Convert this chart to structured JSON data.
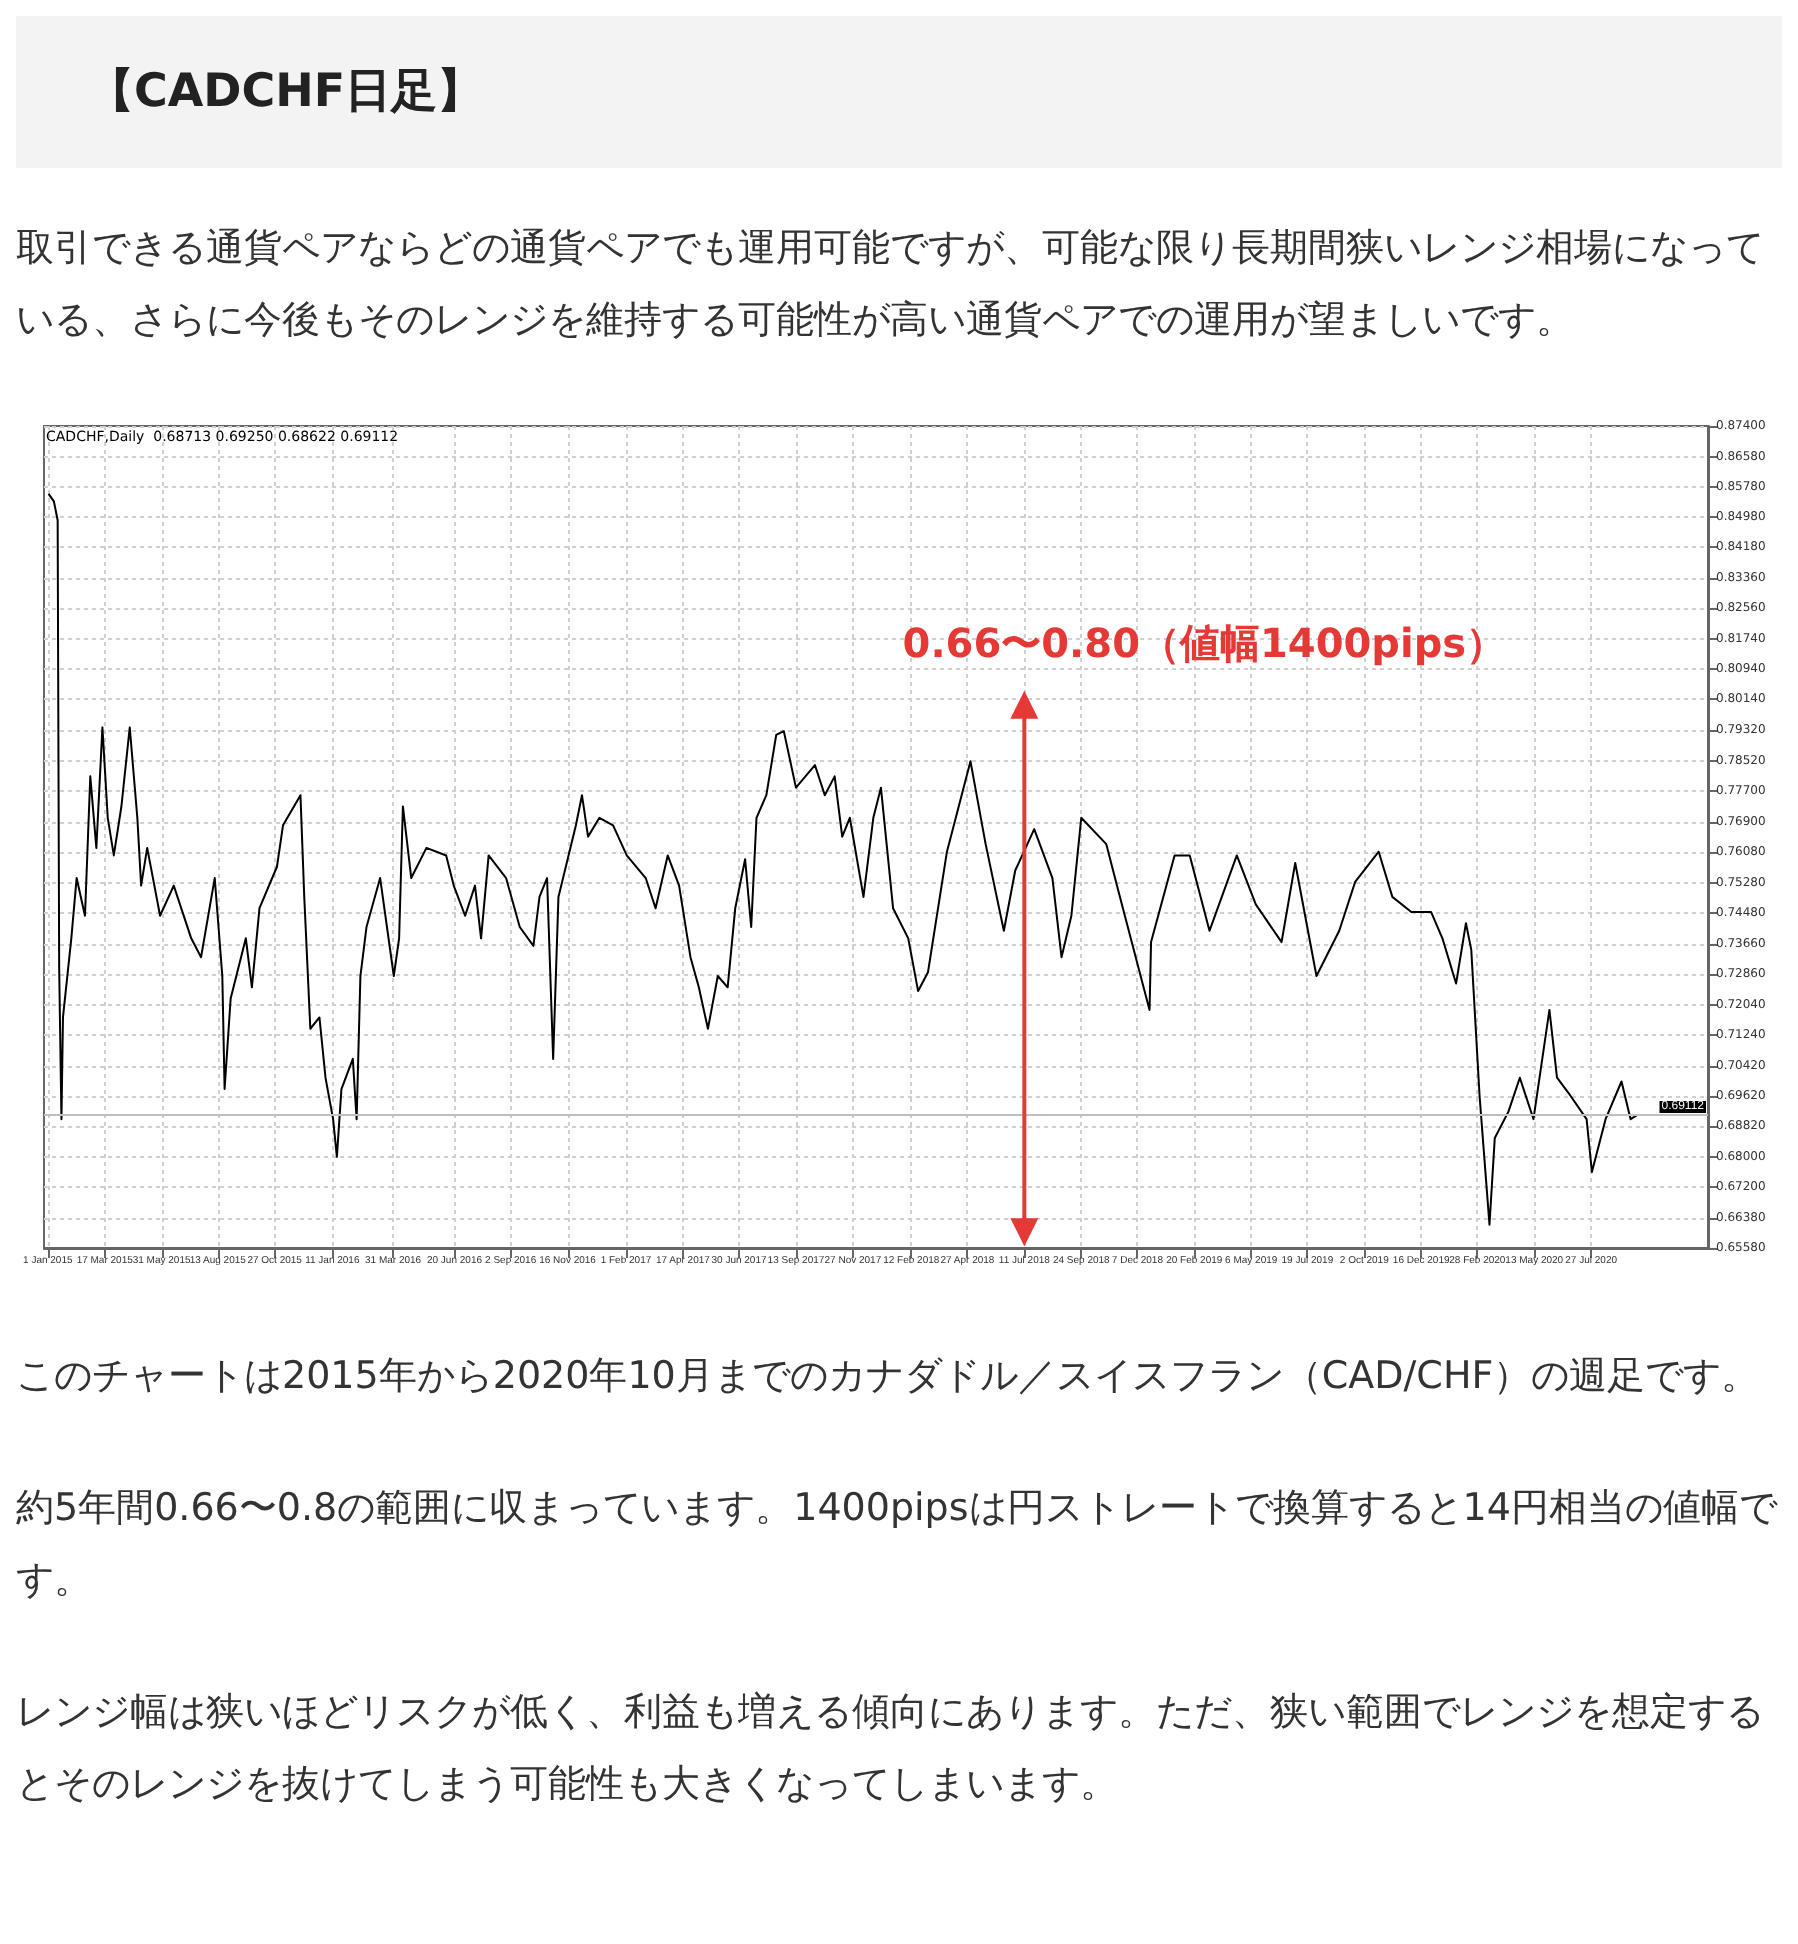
{
  "chart_data": {
    "type": "line",
    "title": "【CADCHF日足】",
    "subtitle": "CADCHF,Daily  0.68713 0.69250 0.68622 0.69112",
    "annotations": [
      "取引できる通貨ペアならどの通貨ペアでも運用可能ですが、可能な限り長期間狭いレンジ相場になっている、さらに今後もそのレンジを維持する可能性が高い通貨ペアでの運用が望ましいです。",
      "このチャートは2015年から2020年10月までのカナダドル／スイスフラン（CAD/CHF）の週足です。",
      "約5年間0.66〜0.8の範囲に収まっています。1400pipsは円ストレートで換算すると14円相当の値幅です。",
      "レンジ幅は狭いほどリスクが低く、利益も増える傾向にあります。ただ、狭い範囲でレンジを想定するとそのレンジを抜けてしまう可能性も大きくなってしまいます。"
    ],
    "xlim": [
      "2014-12-27",
      "2020-12-28"
    ],
    "ylim": [
      0.6558,
      0.874
    ],
    "xticks": [
      {
        "value": "2015-01-01",
        "label": "1 Jan 2015"
      },
      {
        "value": "2015-03-17",
        "label": "17 Mar 2015"
      },
      {
        "value": "2015-05-31",
        "label": "31 May 2015"
      },
      {
        "value": "2015-08-13",
        "label": "13 Aug 2015"
      },
      {
        "value": "2015-10-27",
        "label": "27 Oct 2015"
      },
      {
        "value": "2016-01-11",
        "label": "11 Jan 2016"
      },
      {
        "value": "2016-03-31",
        "label": "31 Mar 2016"
      },
      {
        "value": "2016-06-20",
        "label": "20 Jun 2016"
      },
      {
        "value": "2016-09-02",
        "label": "2 Sep 2016"
      },
      {
        "value": "2016-11-16",
        "label": "16 Nov 2016"
      },
      {
        "value": "2017-02-01",
        "label": "1 Feb 2017"
      },
      {
        "value": "2017-04-17",
        "label": "17 Apr 2017"
      },
      {
        "value": "2017-06-30",
        "label": "30 Jun 2017"
      },
      {
        "value": "2017-09-13",
        "label": "13 Sep 2017"
      },
      {
        "value": "2017-11-27",
        "label": "27 Nov 2017"
      },
      {
        "value": "2018-02-12",
        "label": "12 Feb 2018"
      },
      {
        "value": "2018-04-27",
        "label": "27 Apr 2018"
      },
      {
        "value": "2018-07-11",
        "label": "11 Jul 2018"
      },
      {
        "value": "2018-09-24",
        "label": "24 Sep 2018"
      },
      {
        "value": "2018-12-07",
        "label": "7 Dec 2018"
      },
      {
        "value": "2019-02-20",
        "label": "20 Feb 2019"
      },
      {
        "value": "2019-05-06",
        "label": "6 May 2019"
      },
      {
        "value": "2019-07-19",
        "label": "19 Jul 2019"
      },
      {
        "value": "2019-10-02",
        "label": "2 Oct 2019"
      },
      {
        "value": "2019-12-16",
        "label": "16 Dec 2019"
      },
      {
        "value": "2020-02-28",
        "label": "28 Feb 2020"
      },
      {
        "value": "2020-05-13",
        "label": "13 May 2020"
      },
      {
        "value": "2020-07-27",
        "label": "27 Jul 2020"
      }
    ],
    "yticks": [
      {
        "value": 0.874,
        "label": "0.87400"
      },
      {
        "value": 0.8658,
        "label": "0.86580"
      },
      {
        "value": 0.8578,
        "label": "0.85780"
      },
      {
        "value": 0.8498,
        "label": "0.84980"
      },
      {
        "value": 0.8418,
        "label": "0.84180"
      },
      {
        "value": 0.8336,
        "label": "0.83360"
      },
      {
        "value": 0.8256,
        "label": "0.82560"
      },
      {
        "value": 0.8174,
        "label": "0.81740"
      },
      {
        "value": 0.8094,
        "label": "0.80940"
      },
      {
        "value": 0.8014,
        "label": "0.80140"
      },
      {
        "value": 0.7932,
        "label": "0.79320"
      },
      {
        "value": 0.7852,
        "label": "0.78520"
      },
      {
        "value": 0.777,
        "label": "0.77700"
      },
      {
        "value": 0.769,
        "label": "0.76900"
      },
      {
        "value": 0.7608,
        "label": "0.76080"
      },
      {
        "value": 0.7528,
        "label": "0.75280"
      },
      {
        "value": 0.7448,
        "label": "0.74480"
      },
      {
        "value": 0.7366,
        "label": "0.73660"
      },
      {
        "value": 0.7286,
        "label": "0.72860"
      },
      {
        "value": 0.7204,
        "label": "0.72040"
      },
      {
        "value": 0.7124,
        "label": "0.71240"
      },
      {
        "value": 0.7042,
        "label": "0.70420"
      },
      {
        "value": 0.6962,
        "label": "0.69620"
      },
      {
        "value": 0.6882,
        "label": "0.68820"
      },
      {
        "value": 0.68,
        "label": "0.68000"
      },
      {
        "value": 0.672,
        "label": "0.67200"
      },
      {
        "value": 0.6638,
        "label": "0.66380"
      },
      {
        "value": 0.6558,
        "label": "0.65580"
      }
    ],
    "grid": true,
    "ref_lines": [
      {
        "axis": "y",
        "value": 0.69112,
        "label": "0.69112",
        "color": "#c0c0c0"
      }
    ],
    "series": [
      {
        "color": "#000000",
        "x": [
          "2015-01-02",
          "2015-01-09",
          "2015-01-14",
          "2015-01-16",
          "2015-01-19",
          "2015-01-21",
          "2015-02-01",
          "2015-02-08",
          "2015-02-19",
          "2015-02-26",
          "2015-03-06",
          "2015-03-14",
          "2015-03-21",
          "2015-03-29",
          "2015-04-08",
          "2015-04-19",
          "2015-04-29",
          "2015-05-04",
          "2015-05-12",
          "2015-05-29",
          "2015-06-16",
          "2015-07-09",
          "2015-07-22",
          "2015-08-09",
          "2015-08-19",
          "2015-08-22",
          "2015-08-30",
          "2015-09-19",
          "2015-09-27",
          "2015-10-07",
          "2015-10-30",
          "2015-11-07",
          "2015-11-30",
          "2015-12-05",
          "2015-12-13",
          "2015-12-25",
          "2016-01-02",
          "2016-01-12",
          "2016-01-17",
          "2016-01-23",
          "2016-02-07",
          "2016-02-12",
          "2016-02-17",
          "2016-02-25",
          "2016-03-14",
          "2016-04-01",
          "2016-04-08",
          "2016-04-13",
          "2016-04-24",
          "2016-05-14",
          "2016-06-09",
          "2016-06-19",
          "2016-07-04",
          "2016-07-17",
          "2016-07-25",
          "2016-08-04",
          "2016-08-27",
          "2016-09-14",
          "2016-10-02",
          "2016-10-10",
          "2016-10-20",
          "2016-10-28",
          "2016-11-04",
          "2016-11-27",
          "2016-12-05",
          "2016-12-13",
          "2016-12-28",
          "2017-01-15",
          "2017-02-02",
          "2017-02-27",
          "2017-03-12",
          "2017-03-28",
          "2017-04-12",
          "2017-04-27",
          "2017-05-08",
          "2017-05-20",
          "2017-06-02",
          "2017-06-15",
          "2017-06-25",
          "2017-07-08",
          "2017-07-16",
          "2017-07-23",
          "2017-08-05",
          "2017-08-18",
          "2017-08-28",
          "2017-09-13",
          "2017-10-08",
          "2017-10-21",
          "2017-11-03",
          "2017-11-13",
          "2017-11-23",
          "2017-12-11",
          "2017-12-24",
          "2018-01-03",
          "2018-01-19",
          "2018-02-08",
          "2018-02-21",
          "2018-03-06",
          "2018-03-31",
          "2018-05-01",
          "2018-05-21",
          "2018-06-14",
          "2018-06-29",
          "2018-07-24",
          "2018-08-17",
          "2018-08-29",
          "2018-09-11",
          "2018-09-24",
          "2018-10-27",
          "2018-11-14",
          "2018-12-23",
          "2018-12-25",
          "2019-01-25",
          "2019-02-14",
          "2019-03-12",
          "2019-04-17",
          "2019-05-12",
          "2019-06-15",
          "2019-07-03",
          "2019-07-31",
          "2019-08-30",
          "2019-09-20",
          "2019-10-21",
          "2019-11-08",
          "2019-12-03",
          "2019-12-29",
          "2020-01-13",
          "2020-01-31",
          "2020-02-13",
          "2020-02-20",
          "2020-03-02",
          "2020-03-15",
          "2020-03-22",
          "2020-04-09",
          "2020-04-24",
          "2020-05-12",
          "2020-06-02",
          "2020-06-12",
          "2020-06-27",
          "2020-07-21",
          "2020-07-28",
          "2020-08-15",
          "2020-09-05",
          "2020-09-17",
          "2020-09-25"
        ],
        "values": [
          0.856,
          0.854,
          0.849,
          0.73,
          0.69,
          0.717,
          0.738,
          0.754,
          0.744,
          0.781,
          0.762,
          0.794,
          0.77,
          0.76,
          0.773,
          0.794,
          0.77,
          0.752,
          0.762,
          0.744,
          0.752,
          0.738,
          0.733,
          0.754,
          0.728,
          0.698,
          0.722,
          0.738,
          0.725,
          0.746,
          0.757,
          0.768,
          0.776,
          0.749,
          0.714,
          0.717,
          0.701,
          0.69,
          0.68,
          0.698,
          0.706,
          0.69,
          0.728,
          0.741,
          0.754,
          0.728,
          0.738,
          0.773,
          0.754,
          0.762,
          0.76,
          0.752,
          0.744,
          0.752,
          0.738,
          0.76,
          0.754,
          0.741,
          0.736,
          0.749,
          0.754,
          0.706,
          0.749,
          0.768,
          0.776,
          0.765,
          0.77,
          0.768,
          0.76,
          0.754,
          0.746,
          0.76,
          0.752,
          0.733,
          0.725,
          0.714,
          0.728,
          0.725,
          0.746,
          0.759,
          0.741,
          0.77,
          0.776,
          0.792,
          0.793,
          0.778,
          0.784,
          0.776,
          0.781,
          0.765,
          0.77,
          0.749,
          0.77,
          0.778,
          0.746,
          0.738,
          0.724,
          0.729,
          0.761,
          0.785,
          0.763,
          0.74,
          0.756,
          0.767,
          0.754,
          0.733,
          0.744,
          0.77,
          0.763,
          0.749,
          0.719,
          0.737,
          0.76,
          0.76,
          0.74,
          0.76,
          0.747,
          0.737,
          0.758,
          0.728,
          0.74,
          0.753,
          0.761,
          0.749,
          0.745,
          0.745,
          0.738,
          0.726,
          0.742,
          0.735,
          0.696,
          0.662,
          0.685,
          0.692,
          0.701,
          0.69,
          0.719,
          0.701,
          0.697,
          0.69,
          0.676,
          0.69,
          0.7,
          0.69,
          0.691
        ]
      },
      {
        "name": "0.66〜0.80（値幅1400pips）",
        "color": "#e53935",
        "marker": "triangle",
        "x": [
          "2018-07-11",
          "2018-07-11"
        ],
        "values": [
          0.8,
          0.66
        ]
      }
    ]
  }
}
